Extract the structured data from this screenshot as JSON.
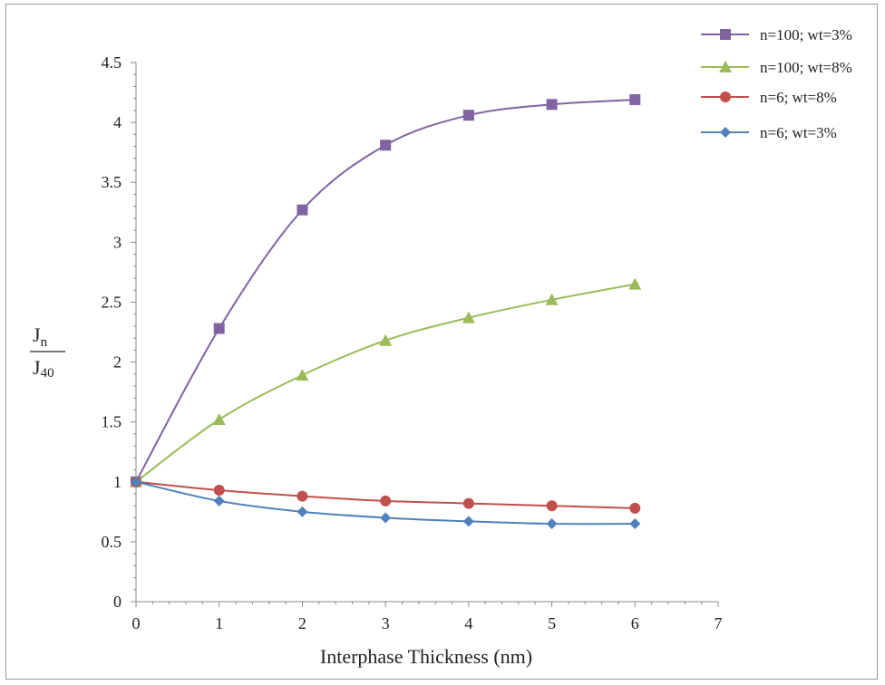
{
  "chart_data": {
    "type": "line",
    "xlabel": "Interphase Thickness (nm)",
    "ylabel": {
      "numerator_main": "J",
      "numerator_sub": "n",
      "denominator_main": "J",
      "denominator_sub": "40"
    },
    "xlim": [
      0,
      7
    ],
    "ylim": [
      0,
      4.5
    ],
    "x_ticks": [
      "0",
      "1",
      "2",
      "3",
      "4",
      "5",
      "6",
      "7"
    ],
    "y_ticks": [
      "0",
      "0.5",
      "1",
      "1.5",
      "2",
      "2.5",
      "3",
      "3.5",
      "4",
      "4.5"
    ],
    "x": [
      0,
      1,
      2,
      3,
      4,
      5,
      6
    ],
    "legend_position": "top-right",
    "grid": false,
    "series": [
      {
        "name": "n=100; wt=3%",
        "color": "#8064a2",
        "marker": "square",
        "values": [
          1.0,
          2.28,
          3.27,
          3.81,
          4.06,
          4.15,
          4.19
        ]
      },
      {
        "name": "n=100; wt=8%",
        "color": "#9bbb59",
        "marker": "triangle",
        "values": [
          1.0,
          1.52,
          1.89,
          2.18,
          2.37,
          2.52,
          2.65
        ]
      },
      {
        "name": "n=6; wt=8%",
        "color": "#c0504d",
        "marker": "circle",
        "values": [
          1.0,
          0.93,
          0.88,
          0.84,
          0.82,
          0.8,
          0.78
        ]
      },
      {
        "name": "n=6; wt=3%",
        "color": "#4f81bd",
        "marker": "diamond",
        "values": [
          1.0,
          0.84,
          0.75,
          0.7,
          0.67,
          0.65,
          0.65
        ]
      }
    ]
  }
}
